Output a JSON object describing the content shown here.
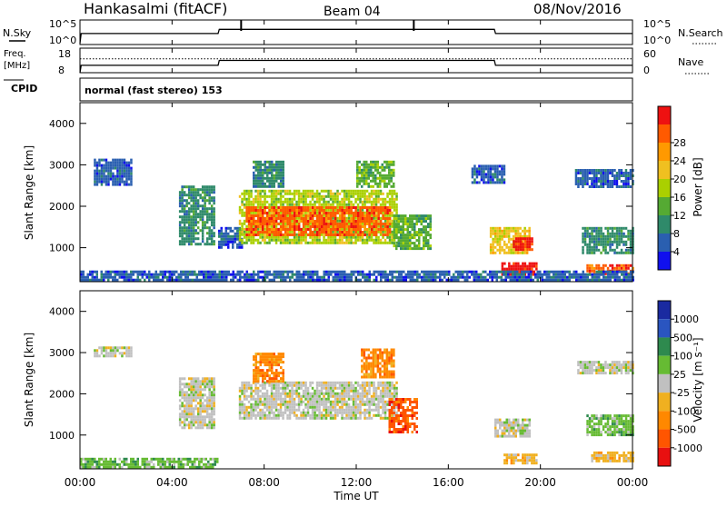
{
  "header": {
    "station": "Hankasalmi (fitACF)",
    "beam": "Beam 04",
    "date": "08/Nov/2016"
  },
  "noise_panel": {
    "left_label": "N.Sky",
    "left_ticks": [
      "10^5",
      "10^0"
    ],
    "right_label": "N.Search",
    "right_ticks": [
      "10^5",
      "10^0"
    ]
  },
  "freq_panel": {
    "left_label_line1": "Freq.",
    "left_label_line2": "[MHz]",
    "left_ticks": [
      "18",
      "8"
    ],
    "right_label": "Nave",
    "right_ticks": [
      "60",
      "0"
    ]
  },
  "cpid": {
    "label": "CPID",
    "text": "normal (fast stereo) 153"
  },
  "x_axis": {
    "ticks": [
      "00:00",
      "04:00",
      "08:00",
      "12:00",
      "16:00",
      "20:00",
      "00:00"
    ],
    "label": "Time UT"
  },
  "colors": {
    "power_scale": [
      "#1010ee",
      "#2a5fb0",
      "#2f8a6a",
      "#55aa33",
      "#aad000",
      "#f0c020",
      "#ff9900",
      "#ff5a00",
      "#ee1111"
    ],
    "velocity_scale": [
      "#1a2aa0",
      "#2a55c0",
      "#2e8a4e",
      "#66bb33",
      "#c0c0c0",
      "#f0b020",
      "#ff8800",
      "#ff5500",
      "#e81010"
    ]
  },
  "chart_data": [
    {
      "type": "line",
      "title": "N.Sky / N.Search",
      "x_range_hours": [
        0,
        24
      ],
      "series": [
        {
          "name": "N.Sky",
          "x": [
            0,
            0.05,
            6,
            6.05,
            7,
            14.5,
            18,
            18.05,
            24
          ],
          "y_fraction": [
            0.05,
            0.45,
            0.45,
            0.62,
            0.62,
            0.62,
            0.62,
            0.45,
            0.45
          ]
        }
      ],
      "spikes_hours": [
        7.0,
        14.5
      ]
    },
    {
      "type": "line",
      "title": "Freq / Nave",
      "x_range_hours": [
        0,
        24
      ],
      "ylim_freq": [
        8,
        18
      ],
      "ylim_nave": [
        0,
        60
      ],
      "series": [
        {
          "name": "Freq.",
          "x": [
            0,
            0.05,
            6,
            6.05,
            18,
            18.05,
            24
          ],
          "y": [
            8,
            11,
            11,
            13,
            13,
            11,
            11
          ]
        },
        {
          "name": "Nave",
          "x": [
            0,
            24
          ],
          "y": [
            34,
            34
          ]
        }
      ]
    },
    {
      "type": "heatmap",
      "title": "Power",
      "xlabel": "",
      "ylabel": "Slant Range [km]",
      "y_ticks": [
        "1000",
        "2000",
        "3000",
        "4000"
      ],
      "xlim": [
        0,
        24
      ],
      "ylim": [
        180,
        4500
      ],
      "colorbar_label": "Power [dB]",
      "colorbar_ticks": [
        "4",
        "8",
        "12",
        "16",
        "20",
        "24",
        "28"
      ],
      "regions": [
        {
          "t0": 0.6,
          "t1": 2.2,
          "r0": 2550,
          "r1": 3150,
          "level": 1
        },
        {
          "t0": 4.3,
          "t1": 5.8,
          "r0": 1100,
          "r1": 2500,
          "level": 2
        },
        {
          "t0": 6.0,
          "t1": 7.0,
          "r0": 1000,
          "r1": 1500,
          "level": 1
        },
        {
          "t0": 6.9,
          "t1": 13.8,
          "r0": 1100,
          "r1": 2400,
          "level": 4
        },
        {
          "t0": 7.2,
          "t1": 13.5,
          "r0": 1300,
          "r1": 2000,
          "level": 7
        },
        {
          "t0": 7.5,
          "t1": 8.8,
          "r0": 2500,
          "r1": 3100,
          "level": 2
        },
        {
          "t0": 12.0,
          "t1": 13.6,
          "r0": 2500,
          "r1": 3100,
          "level": 3
        },
        {
          "t0": 13.6,
          "t1": 15.2,
          "r0": 1000,
          "r1": 1800,
          "level": 3
        },
        {
          "t0": 17.8,
          "t1": 19.5,
          "r0": 900,
          "r1": 1500,
          "level": 5
        },
        {
          "t0": 18.8,
          "t1": 19.6,
          "r0": 950,
          "r1": 1250,
          "level": 8
        },
        {
          "t0": 17.0,
          "t1": 18.4,
          "r0": 2600,
          "r1": 3000,
          "level": 1
        },
        {
          "t0": 18.3,
          "t1": 19.8,
          "r0": 350,
          "r1": 650,
          "level": 8
        },
        {
          "t0": 21.5,
          "t1": 24.0,
          "r0": 2500,
          "r1": 2900,
          "level": 1
        },
        {
          "t0": 21.8,
          "t1": 24.0,
          "r0": 900,
          "r1": 1500,
          "level": 2
        },
        {
          "t0": 22.0,
          "t1": 24.0,
          "r0": 350,
          "r1": 600,
          "level": 7
        },
        {
          "t0": 0.0,
          "t1": 24.0,
          "r0": 200,
          "r1": 450,
          "level": 1
        }
      ]
    },
    {
      "type": "heatmap",
      "title": "Velocity",
      "xlabel": "Time UT",
      "ylabel": "Slant Range [km]",
      "y_ticks": [
        "1000",
        "2000",
        "3000",
        "4000"
      ],
      "xlim": [
        0,
        24
      ],
      "ylim": [
        180,
        4500
      ],
      "colorbar_label": "Velocity [m s⁻¹]",
      "colorbar_ticks": [
        "1000",
        "500",
        "100",
        "25",
        "-25",
        "-100",
        "-500",
        "-1000"
      ],
      "regions": [
        {
          "t0": 0.6,
          "t1": 2.2,
          "r0": 2950,
          "r1": 3150,
          "level": 4
        },
        {
          "t0": 4.3,
          "t1": 5.8,
          "r0": 1200,
          "r1": 2400,
          "level": 4
        },
        {
          "t0": 6.9,
          "t1": 13.8,
          "r0": 1400,
          "r1": 2300,
          "level": 4
        },
        {
          "t0": 7.5,
          "t1": 8.8,
          "r0": 2300,
          "r1": 3000,
          "level": 6
        },
        {
          "t0": 12.2,
          "t1": 13.6,
          "r0": 2400,
          "r1": 3100,
          "level": 6
        },
        {
          "t0": 13.4,
          "t1": 14.6,
          "r0": 1100,
          "r1": 1900,
          "level": 7
        },
        {
          "t0": 18.0,
          "t1": 19.5,
          "r0": 1000,
          "r1": 1400,
          "level": 4
        },
        {
          "t0": 18.4,
          "t1": 19.8,
          "r0": 300,
          "r1": 550,
          "level": 5
        },
        {
          "t0": 21.6,
          "t1": 24.0,
          "r0": 2500,
          "r1": 2800,
          "level": 4
        },
        {
          "t0": 22.0,
          "t1": 24.0,
          "r0": 1000,
          "r1": 1500,
          "level": 3
        },
        {
          "t0": 22.2,
          "t1": 24.0,
          "r0": 350,
          "r1": 600,
          "level": 5
        },
        {
          "t0": 0.0,
          "t1": 6.0,
          "r0": 200,
          "r1": 450,
          "level": 3
        }
      ]
    }
  ]
}
